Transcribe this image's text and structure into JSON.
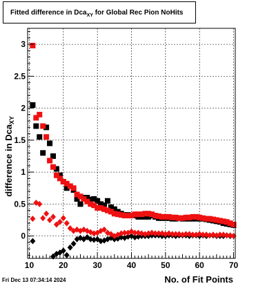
{
  "title": {
    "main": "Fitted difference in Dca",
    "sub": "XY",
    "rest": " for Global Rec Pion NoHits"
  },
  "footer": "Fri Dec 13 07:34:14 2024",
  "chart_data": {
    "type": "scatter",
    "xlabel": "No. of Fit Points",
    "ylabel": "difference in Dca",
    "ylabel_sub": "XY",
    "xlim": [
      9.5,
      70.5
    ],
    "ylim": [
      -0.35,
      3.25
    ],
    "xticks": [
      10,
      20,
      30,
      40,
      50,
      60,
      70
    ],
    "yticks": [
      0,
      0.5,
      1,
      1.5,
      2,
      2.5,
      3
    ],
    "ytick_labels": [
      "0",
      "0.5",
      "1",
      "1.5",
      "2",
      "2.5",
      "3"
    ],
    "grid": true,
    "colors": {
      "black": "#000000",
      "red": "#ee1111"
    },
    "series": [
      {
        "marker": "square",
        "color": "black",
        "x": [
          11,
          12,
          13,
          14,
          15,
          16,
          17,
          18,
          19,
          20,
          21,
          22,
          23,
          24,
          25,
          26,
          27,
          28,
          29,
          30,
          31,
          32,
          33,
          34,
          35,
          36,
          37,
          38,
          39,
          40,
          41,
          42,
          43,
          44,
          45,
          46,
          47,
          48,
          49,
          50,
          51,
          52,
          53,
          54,
          55,
          56,
          57,
          58,
          59,
          60,
          61,
          62,
          63,
          64,
          65,
          66,
          67,
          68,
          69,
          70
        ],
        "y": [
          2.05,
          1.72,
          1.55,
          1.3,
          1.7,
          1.45,
          1.25,
          1.05,
          0.95,
          0.85,
          0.75,
          0.78,
          0.72,
          0.58,
          0.5,
          0.6,
          0.6,
          0.57,
          0.58,
          0.55,
          0.5,
          0.48,
          0.55,
          0.45,
          0.42,
          0.38,
          0.35,
          0.33,
          0.33,
          0.32,
          0.32,
          0.3,
          0.3,
          0.3,
          0.3,
          0.32,
          0.3,
          0.28,
          0.28,
          0.28,
          0.28,
          0.27,
          0.27,
          0.28,
          0.27,
          0.27,
          0.27,
          0.27,
          0.27,
          0.27,
          0.27,
          0.26,
          0.25,
          0.24,
          0.23,
          0.22,
          0.2,
          0.19,
          0.18,
          0.17
        ]
      },
      {
        "marker": "square",
        "color": "red",
        "x": [
          11,
          12,
          13,
          14,
          15,
          16,
          17,
          18,
          19,
          20,
          21,
          22,
          23,
          24,
          25,
          26,
          27,
          28,
          29,
          30,
          31,
          32,
          33,
          34,
          35,
          36,
          37,
          38,
          39,
          40,
          41,
          42,
          43,
          44,
          45,
          46,
          47,
          48,
          49,
          50,
          51,
          52,
          53,
          54,
          55,
          56,
          57,
          58,
          59,
          60,
          61,
          62,
          63,
          64,
          65,
          66,
          67,
          68,
          69,
          70
        ],
        "y": [
          2.98,
          1.85,
          1.9,
          1.72,
          1.55,
          1.18,
          1.08,
          0.95,
          0.9,
          0.85,
          0.82,
          0.78,
          0.75,
          0.65,
          0.62,
          0.58,
          0.54,
          0.5,
          0.48,
          0.44,
          0.44,
          0.42,
          0.4,
          0.38,
          0.35,
          0.34,
          0.33,
          0.32,
          0.32,
          0.32,
          0.34,
          0.34,
          0.34,
          0.35,
          0.35,
          0.34,
          0.32,
          0.31,
          0.3,
          0.3,
          0.3,
          0.29,
          0.29,
          0.28,
          0.28,
          0.29,
          0.29,
          0.3,
          0.3,
          0.29,
          0.28,
          0.27,
          0.27,
          0.26,
          0.25,
          0.24,
          0.23,
          0.22,
          0.2,
          0.18
        ]
      },
      {
        "marker": "diamond",
        "color": "black",
        "x": [
          11,
          17,
          18,
          19,
          20,
          21,
          22,
          23,
          24,
          25,
          26,
          27,
          28,
          29,
          30,
          31,
          32,
          33,
          34,
          35,
          36,
          37,
          38,
          39,
          40,
          41,
          42,
          43,
          44,
          45,
          46,
          47,
          48,
          49,
          50,
          51,
          52,
          53,
          54,
          55,
          56,
          57,
          58,
          59,
          60,
          61,
          62,
          63,
          64,
          65,
          66,
          67,
          68,
          69,
          70
        ],
        "y": [
          -0.08,
          -0.32,
          -0.28,
          -0.26,
          -0.23,
          -0.3,
          -0.18,
          -0.12,
          -0.05,
          -0.03,
          -0.05,
          -0.02,
          -0.05,
          -0.06,
          -0.05,
          -0.08,
          -0.07,
          -0.05,
          -0.03,
          -0.05,
          -0.04,
          -0.02,
          -0.03,
          -0.01,
          0.0,
          -0.02,
          -0.01,
          0.0,
          0.0,
          0.0,
          0.01,
          0.01,
          0.01,
          0.0,
          0.0,
          0.01,
          0.01,
          0.0,
          0.01,
          0.01,
          0.01,
          0.0,
          0.01,
          0.01,
          0.0,
          0.01,
          0.0,
          0.01,
          0.01,
          0.0,
          0.0,
          0.0,
          0.01,
          0.0,
          0.0
        ]
      },
      {
        "marker": "diamond",
        "color": "red",
        "x": [
          11,
          12,
          13,
          14,
          15,
          16,
          17,
          18,
          19,
          20,
          21,
          22,
          23,
          24,
          25,
          26,
          27,
          28,
          29,
          30,
          31,
          32,
          33,
          34,
          35,
          36,
          37,
          38,
          39,
          40,
          41,
          42,
          43,
          44,
          45,
          46,
          47,
          48,
          49,
          50,
          51,
          52,
          53,
          54,
          55,
          56,
          57,
          58,
          59,
          60,
          61,
          62,
          63,
          64,
          65,
          66,
          67,
          68,
          69,
          70
        ],
        "y": [
          0.27,
          0.52,
          0.5,
          0.28,
          0.35,
          0.25,
          0.3,
          0.18,
          0.22,
          0.28,
          0.2,
          0.12,
          0.08,
          0.1,
          0.08,
          0.1,
          0.08,
          0.06,
          0.04,
          0.05,
          0.08,
          0.1,
          0.05,
          0.03,
          0.0,
          0.02,
          0.04,
          0.05,
          0.05,
          0.07,
          0.05,
          0.05,
          0.04,
          0.03,
          0.04,
          0.05,
          0.04,
          0.04,
          0.04,
          0.03,
          0.04,
          0.03,
          0.03,
          0.03,
          0.02,
          0.03,
          0.03,
          0.02,
          0.02,
          0.03,
          0.02,
          0.02,
          0.01,
          0.02,
          0.01,
          0.02,
          0.02,
          0.01,
          0.01,
          0.0
        ]
      }
    ]
  }
}
